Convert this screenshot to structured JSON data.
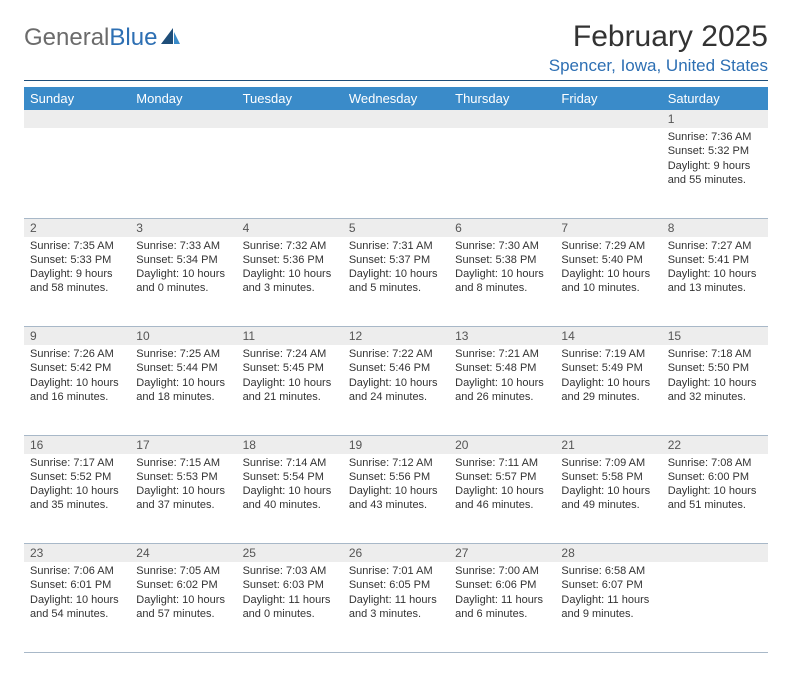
{
  "logo": {
    "text1": "General",
    "text2": "Blue"
  },
  "title": "February 2025",
  "location": "Spencer, Iowa, United States",
  "colors": {
    "header_bg": "#3a8bc9",
    "header_text": "#ffffff",
    "location_color": "#2d6fb3",
    "daynum_bg": "#ededed",
    "rule": "#1f4e79"
  },
  "weekdays": [
    "Sunday",
    "Monday",
    "Tuesday",
    "Wednesday",
    "Thursday",
    "Friday",
    "Saturday"
  ],
  "weeks": [
    {
      "nums": [
        "",
        "",
        "",
        "",
        "",
        "",
        "1"
      ],
      "cells": [
        null,
        null,
        null,
        null,
        null,
        null,
        {
          "sunrise": "7:36 AM",
          "sunset": "5:32 PM",
          "daylight": "9 hours and 55 minutes."
        }
      ]
    },
    {
      "nums": [
        "2",
        "3",
        "4",
        "5",
        "6",
        "7",
        "8"
      ],
      "cells": [
        {
          "sunrise": "7:35 AM",
          "sunset": "5:33 PM",
          "daylight": "9 hours and 58 minutes."
        },
        {
          "sunrise": "7:33 AM",
          "sunset": "5:34 PM",
          "daylight": "10 hours and 0 minutes."
        },
        {
          "sunrise": "7:32 AM",
          "sunset": "5:36 PM",
          "daylight": "10 hours and 3 minutes."
        },
        {
          "sunrise": "7:31 AM",
          "sunset": "5:37 PM",
          "daylight": "10 hours and 5 minutes."
        },
        {
          "sunrise": "7:30 AM",
          "sunset": "5:38 PM",
          "daylight": "10 hours and 8 minutes."
        },
        {
          "sunrise": "7:29 AM",
          "sunset": "5:40 PM",
          "daylight": "10 hours and 10 minutes."
        },
        {
          "sunrise": "7:27 AM",
          "sunset": "5:41 PM",
          "daylight": "10 hours and 13 minutes."
        }
      ]
    },
    {
      "nums": [
        "9",
        "10",
        "11",
        "12",
        "13",
        "14",
        "15"
      ],
      "cells": [
        {
          "sunrise": "7:26 AM",
          "sunset": "5:42 PM",
          "daylight": "10 hours and 16 minutes."
        },
        {
          "sunrise": "7:25 AM",
          "sunset": "5:44 PM",
          "daylight": "10 hours and 18 minutes."
        },
        {
          "sunrise": "7:24 AM",
          "sunset": "5:45 PM",
          "daylight": "10 hours and 21 minutes."
        },
        {
          "sunrise": "7:22 AM",
          "sunset": "5:46 PM",
          "daylight": "10 hours and 24 minutes."
        },
        {
          "sunrise": "7:21 AM",
          "sunset": "5:48 PM",
          "daylight": "10 hours and 26 minutes."
        },
        {
          "sunrise": "7:19 AM",
          "sunset": "5:49 PM",
          "daylight": "10 hours and 29 minutes."
        },
        {
          "sunrise": "7:18 AM",
          "sunset": "5:50 PM",
          "daylight": "10 hours and 32 minutes."
        }
      ]
    },
    {
      "nums": [
        "16",
        "17",
        "18",
        "19",
        "20",
        "21",
        "22"
      ],
      "cells": [
        {
          "sunrise": "7:17 AM",
          "sunset": "5:52 PM",
          "daylight": "10 hours and 35 minutes."
        },
        {
          "sunrise": "7:15 AM",
          "sunset": "5:53 PM",
          "daylight": "10 hours and 37 minutes."
        },
        {
          "sunrise": "7:14 AM",
          "sunset": "5:54 PM",
          "daylight": "10 hours and 40 minutes."
        },
        {
          "sunrise": "7:12 AM",
          "sunset": "5:56 PM",
          "daylight": "10 hours and 43 minutes."
        },
        {
          "sunrise": "7:11 AM",
          "sunset": "5:57 PM",
          "daylight": "10 hours and 46 minutes."
        },
        {
          "sunrise": "7:09 AM",
          "sunset": "5:58 PM",
          "daylight": "10 hours and 49 minutes."
        },
        {
          "sunrise": "7:08 AM",
          "sunset": "6:00 PM",
          "daylight": "10 hours and 51 minutes."
        }
      ]
    },
    {
      "nums": [
        "23",
        "24",
        "25",
        "26",
        "27",
        "28",
        ""
      ],
      "cells": [
        {
          "sunrise": "7:06 AM",
          "sunset": "6:01 PM",
          "daylight": "10 hours and 54 minutes."
        },
        {
          "sunrise": "7:05 AM",
          "sunset": "6:02 PM",
          "daylight": "10 hours and 57 minutes."
        },
        {
          "sunrise": "7:03 AM",
          "sunset": "6:03 PM",
          "daylight": "11 hours and 0 minutes."
        },
        {
          "sunrise": "7:01 AM",
          "sunset": "6:05 PM",
          "daylight": "11 hours and 3 minutes."
        },
        {
          "sunrise": "7:00 AM",
          "sunset": "6:06 PM",
          "daylight": "11 hours and 6 minutes."
        },
        {
          "sunrise": "6:58 AM",
          "sunset": "6:07 PM",
          "daylight": "11 hours and 9 minutes."
        },
        null
      ]
    }
  ],
  "labels": {
    "sunrise": "Sunrise:",
    "sunset": "Sunset:",
    "daylight": "Daylight:"
  }
}
